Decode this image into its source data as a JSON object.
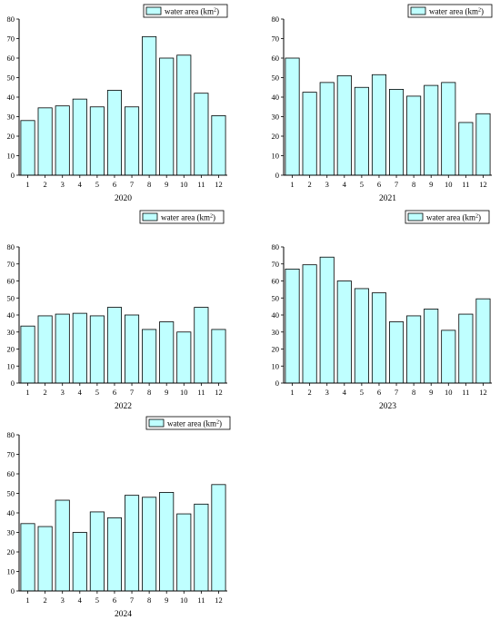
{
  "legend_label": "water area (km",
  "legend_unit_sup": "2",
  "legend_close": ")",
  "colors": {
    "bar_fill": "#bfffff",
    "bar_stroke": "#000000"
  },
  "chart_data": [
    {
      "type": "bar",
      "xlabel": "2020",
      "categories": [
        "1",
        "2",
        "3",
        "4",
        "5",
        "6",
        "7",
        "8",
        "9",
        "10",
        "11",
        "12"
      ],
      "series": [
        {
          "name": "water area (km2)",
          "values": [
            28,
            34.5,
            35.5,
            39,
            35,
            43.5,
            35,
            71,
            60,
            61.5,
            42,
            30.5
          ]
        }
      ],
      "ylim": [
        0,
        80
      ],
      "yticks": [
        0,
        10,
        20,
        30,
        40,
        50,
        60,
        70,
        80
      ],
      "legend": "top-right"
    },
    {
      "type": "bar",
      "xlabel": "2021",
      "categories": [
        "1",
        "2",
        "3",
        "4",
        "5",
        "6",
        "7",
        "8",
        "9",
        "10",
        "11",
        "12"
      ],
      "series": [
        {
          "name": "water area (km2)",
          "values": [
            60,
            42.5,
            47.5,
            51,
            45,
            51.5,
            44,
            40.5,
            46,
            47.5,
            27,
            31.5
          ]
        }
      ],
      "ylim": [
        0,
        80
      ],
      "yticks": [
        0,
        10,
        20,
        30,
        40,
        50,
        60,
        70,
        80
      ],
      "legend": "top-right"
    },
    {
      "type": "bar",
      "xlabel": "2022",
      "categories": [
        "1",
        "2",
        "3",
        "4",
        "5",
        "6",
        "7",
        "8",
        "9",
        "10",
        "11",
        "12"
      ],
      "series": [
        {
          "name": "water area (km2)",
          "values": [
            33.5,
            39.5,
            40.5,
            41,
            39.5,
            44.5,
            40,
            31.5,
            36,
            30,
            44.5,
            31.5
          ]
        }
      ],
      "ylim": [
        0,
        80
      ],
      "yticks": [
        0,
        10,
        20,
        30,
        40,
        50,
        60,
        70,
        80
      ],
      "legend": "top-right"
    },
    {
      "type": "bar",
      "xlabel": "2023",
      "categories": [
        "1",
        "2",
        "3",
        "4",
        "5",
        "6",
        "7",
        "8",
        "9",
        "10",
        "11",
        "12"
      ],
      "series": [
        {
          "name": "water area (km2)",
          "values": [
            67,
            69.5,
            74,
            60,
            55.5,
            53,
            36,
            39.5,
            43.5,
            31,
            40.5,
            49.5
          ]
        }
      ],
      "ylim": [
        0,
        80
      ],
      "yticks": [
        0,
        10,
        20,
        30,
        40,
        50,
        60,
        70,
        80
      ],
      "legend": "top-right"
    },
    {
      "type": "bar",
      "xlabel": "2024",
      "categories": [
        "1",
        "2",
        "3",
        "4",
        "5",
        "6",
        "7",
        "8",
        "9",
        "10",
        "11",
        "12"
      ],
      "series": [
        {
          "name": "water area (km2)",
          "values": [
            34.5,
            33,
            46.5,
            30,
            40.5,
            37.5,
            49,
            48,
            50.5,
            39.5,
            44.5,
            54.5
          ]
        }
      ],
      "ylim": [
        0,
        80
      ],
      "yticks": [
        0,
        10,
        20,
        30,
        40,
        50,
        60,
        70,
        80
      ],
      "legend": "top-right"
    }
  ]
}
